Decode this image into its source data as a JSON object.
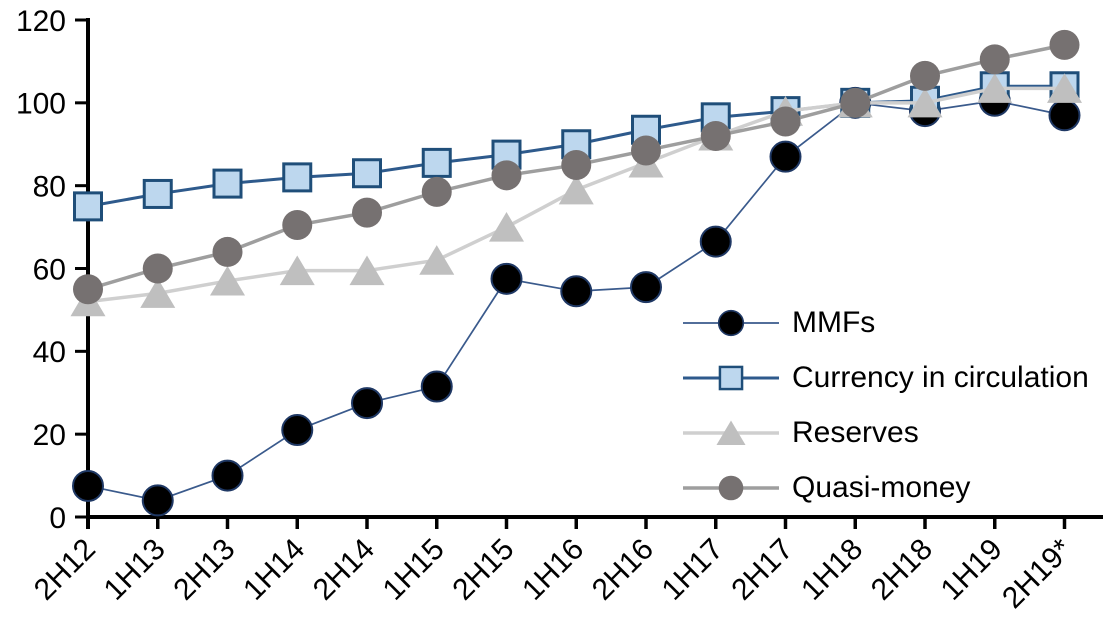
{
  "chart_data": {
    "type": "line",
    "title": "",
    "xlabel": "",
    "ylabel": "",
    "categories": [
      "2H12",
      "1H13",
      "2H13",
      "1H14",
      "2H14",
      "1H15",
      "2H15",
      "1H16",
      "2H16",
      "1H17",
      "2H17",
      "1H18",
      "2H18",
      "1H19",
      "2H19*"
    ],
    "series": [
      {
        "name": "MMFs",
        "marker": "circle",
        "marker_fill": "#000000",
        "marker_stroke": "#1F3864",
        "marker_size": 30,
        "line_color": "#3A5A8C",
        "line_width": 1.7,
        "values": [
          7.5,
          4,
          10,
          21,
          27.5,
          31.5,
          57.5,
          54.5,
          55.5,
          66.5,
          87,
          100,
          98,
          100.5,
          97
        ]
      },
      {
        "name": "Currency in circulation",
        "marker": "square",
        "marker_fill": "#BDD7EE",
        "marker_stroke": "#1F4E79",
        "marker_size": 27,
        "line_color": "#2E5A8C",
        "line_width": 3,
        "values": [
          75,
          78,
          80.5,
          82,
          83,
          85.5,
          87.5,
          90,
          93.5,
          96.5,
          98,
          100,
          100.5,
          104,
          104
        ]
      },
      {
        "name": "Reserves",
        "marker": "triangle",
        "marker_fill": "#BFBFBF",
        "marker_stroke": "#BFBFBF",
        "marker_size": 32,
        "line_color": "#CFCFCF",
        "line_width": 3.5,
        "values": [
          52,
          54,
          57,
          59.5,
          59.5,
          62,
          70,
          79,
          85.5,
          92,
          98,
          100,
          100,
          103.5,
          103.5
        ]
      },
      {
        "name": "Quasi-money",
        "marker": "circle",
        "marker_fill": "#767171",
        "marker_stroke": "#767171",
        "marker_size": 30,
        "line_color": "#9E9E9E",
        "line_width": 3.5,
        "values": [
          55,
          60,
          64,
          70.5,
          73.5,
          78.5,
          82.5,
          85,
          88.5,
          92,
          95.5,
          100,
          106.5,
          110.5,
          114
        ]
      }
    ],
    "yticks": [
      0,
      20,
      40,
      60,
      80,
      100,
      120
    ],
    "ylim": [
      0,
      120
    ],
    "grid": false,
    "axis_color": "#000000",
    "legend_position": "inside-right",
    "x_label_rotation": -45
  }
}
